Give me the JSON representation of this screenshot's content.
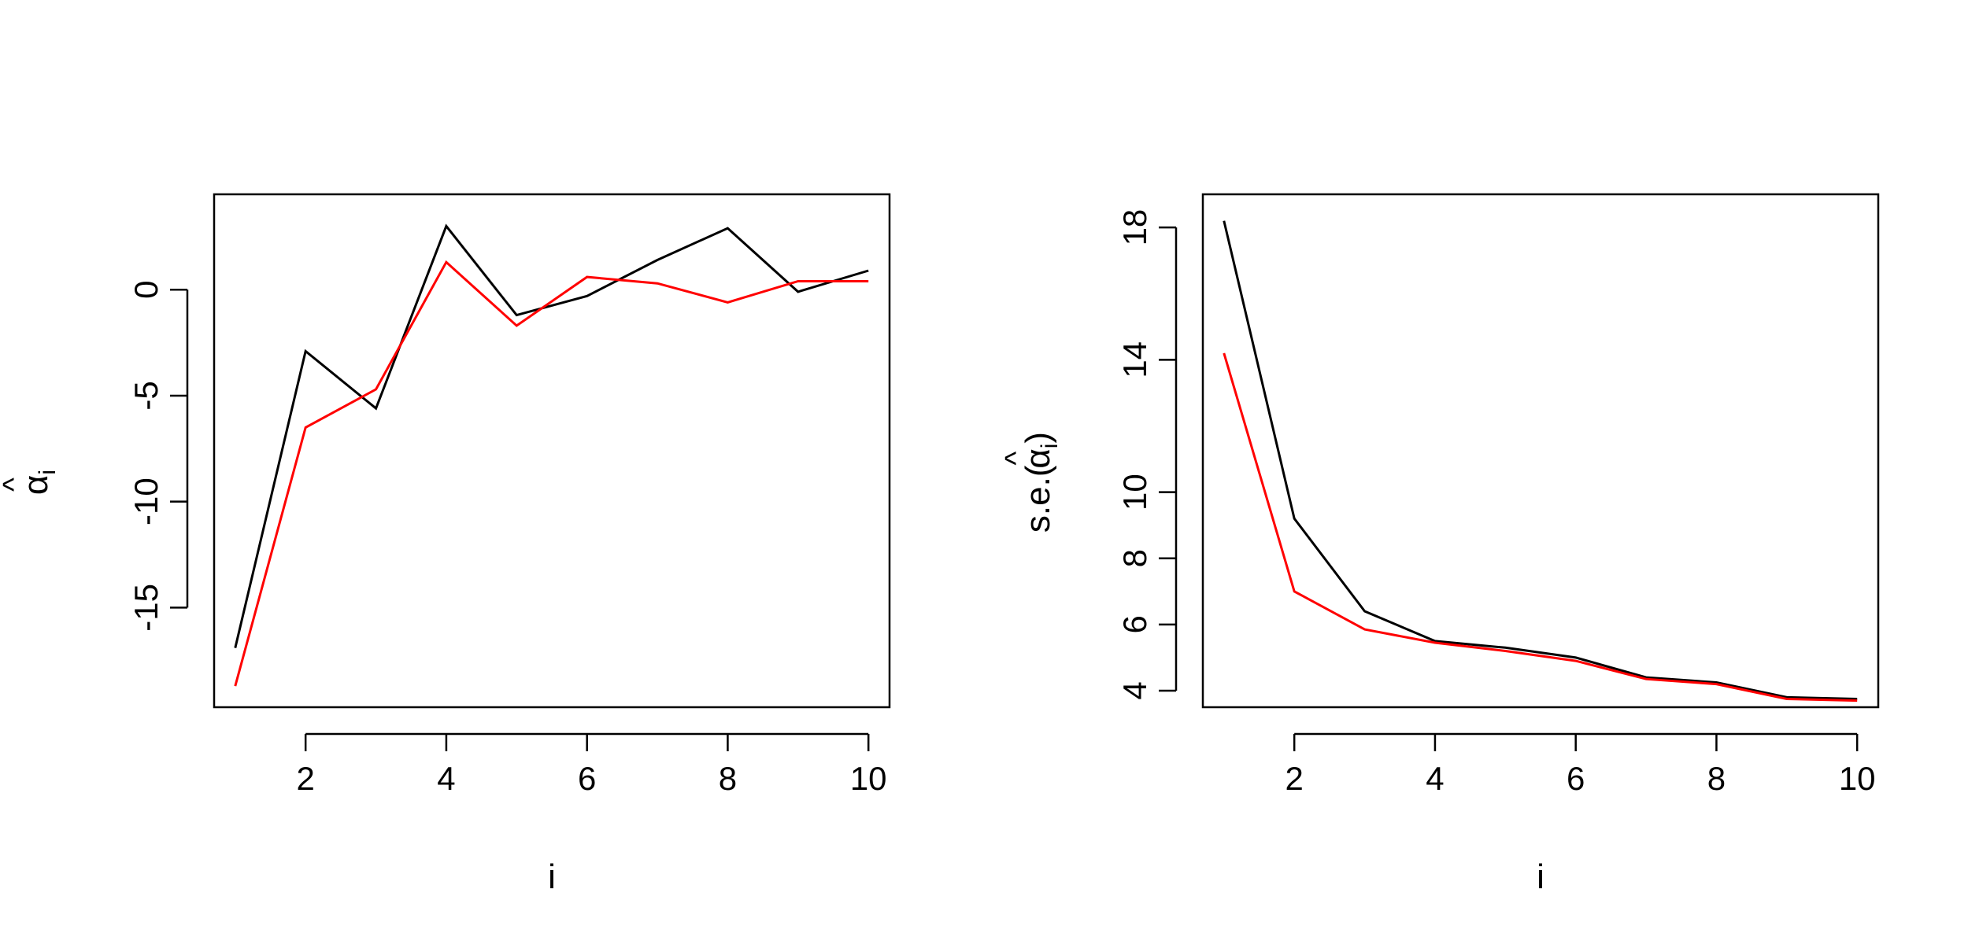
{
  "chart_data": [
    {
      "type": "line",
      "xlabel": "i",
      "ylabel": {
        "base": "α",
        "hat": "^",
        "sub": "i"
      },
      "xlim": [
        0.7,
        10.3
      ],
      "ylim": [
        -19.7,
        4.5
      ],
      "xticks": [
        2,
        4,
        6,
        8,
        10
      ],
      "yticks": [
        -15,
        -10,
        -5,
        0
      ],
      "x": [
        1,
        2,
        3,
        4,
        5,
        6,
        7,
        8,
        9,
        10
      ],
      "series": [
        {
          "color": "#000000",
          "values": [
            -16.9,
            -2.9,
            -5.6,
            3.0,
            -1.2,
            -0.3,
            1.4,
            2.9,
            -0.1,
            0.9
          ]
        },
        {
          "color": "#ff0000",
          "values": [
            -18.7,
            -6.5,
            -4.7,
            1.3,
            -1.7,
            0.6,
            0.3,
            -0.6,
            0.4,
            0.4
          ]
        }
      ],
      "grid": false
    },
    {
      "type": "line",
      "xlabel": "i",
      "ylabel": {
        "prefix": "s.e.(",
        "base": "α",
        "hat": "^",
        "sub": "i",
        "suffix": ")"
      },
      "xlim": [
        0.7,
        10.3
      ],
      "ylim": [
        3.5,
        19.0
      ],
      "xticks": [
        2,
        4,
        6,
        8,
        10
      ],
      "yticks": [
        4,
        6,
        8,
        10,
        14,
        18
      ],
      "x": [
        1,
        2,
        3,
        4,
        5,
        6,
        7,
        8,
        9,
        10
      ],
      "series": [
        {
          "color": "#000000",
          "values": [
            18.2,
            9.2,
            6.4,
            5.5,
            5.3,
            5.0,
            4.4,
            4.25,
            3.8,
            3.75
          ]
        },
        {
          "color": "#ff0000",
          "values": [
            14.2,
            7.0,
            5.85,
            5.45,
            5.2,
            4.9,
            4.35,
            4.2,
            3.75,
            3.7
          ]
        }
      ],
      "grid": false
    }
  ]
}
